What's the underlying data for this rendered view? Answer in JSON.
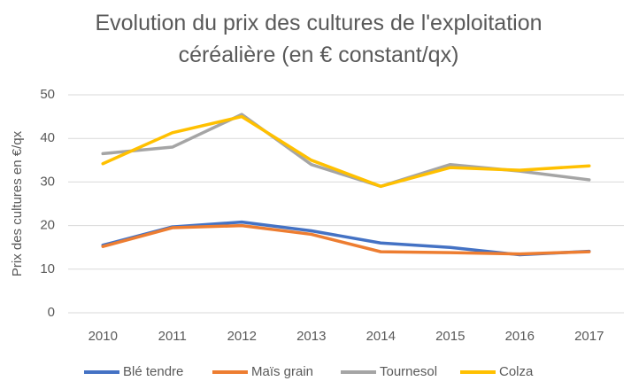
{
  "chart_data": {
    "type": "line",
    "title": "Evolution du prix des cultures de l'exploitation céréalière (en € constant/qx)",
    "y_label": "Prix des cultures en €/qx",
    "categories": [
      "2010",
      "2011",
      "2012",
      "2013",
      "2014",
      "2015",
      "2016",
      "2017"
    ],
    "series": [
      {
        "name": "Blé tendre",
        "color": "#4472c4",
        "values": [
          15.5,
          19.7,
          20.8,
          18.8,
          16,
          15,
          13.3,
          14.1
        ]
      },
      {
        "name": "Maïs grain",
        "color": "#ed7d31",
        "values": [
          15.2,
          19.5,
          20,
          18,
          14,
          13.8,
          13.5,
          14
        ]
      },
      {
        "name": "Tournesol",
        "color": "#a5a5a5",
        "values": [
          36.5,
          38,
          45.5,
          34,
          29,
          34,
          32.5,
          30.5
        ]
      },
      {
        "name": "Colza",
        "color": "#ffc000",
        "values": [
          34.2,
          41.3,
          45,
          35,
          29,
          33.3,
          32.7,
          33.7
        ]
      }
    ],
    "ylim": [
      0,
      50
    ],
    "yticks": [
      0,
      10,
      20,
      30,
      40,
      50
    ],
    "grid": true,
    "legend": "bottom"
  }
}
